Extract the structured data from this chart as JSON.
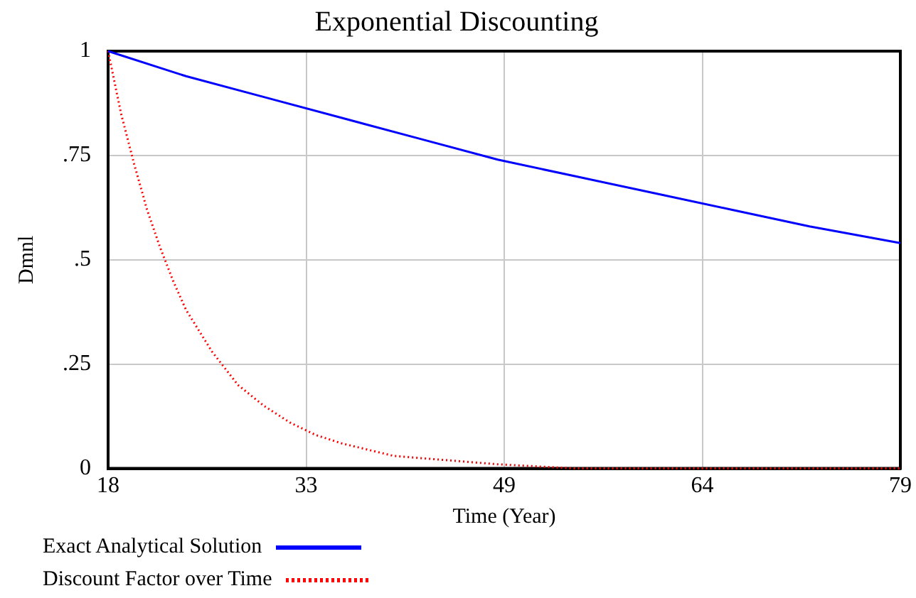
{
  "chart_data": {
    "type": "line",
    "title": "Exponential Discounting",
    "xlabel": "Time (Year)",
    "ylabel": "Dmnl",
    "xlim": [
      18,
      79
    ],
    "xticks": [
      18,
      {
        "value": 33.25,
        "label": "33"
      },
      {
        "value": 48.5,
        "label": "49"
      },
      {
        "value": 63.75,
        "label": "64"
      },
      79
    ],
    "ylim": [
      0,
      1
    ],
    "yticks": [
      0,
      {
        "value": 0.25,
        "label": ".25"
      },
      {
        "value": 0.5,
        "label": ".5"
      },
      {
        "value": 0.75,
        "label": ".75"
      },
      1
    ],
    "grid": true,
    "legend": "bottom",
    "series": [
      {
        "name": "Exact Analytical Solution",
        "color": "#0000ff",
        "line_style": "solid",
        "x": [
          18,
          24,
          30,
          36,
          42,
          48,
          54,
          60,
          66,
          72,
          79
        ],
        "values": [
          1,
          0.94,
          0.89,
          0.84,
          0.79,
          0.74,
          0.7,
          0.66,
          0.62,
          0.58,
          0.54
        ]
      },
      {
        "name": "Discount Factor over Time",
        "color": "#ff0000",
        "line_style": "dotted",
        "x": [
          18,
          19,
          20,
          21,
          22,
          23,
          24,
          26,
          28,
          30,
          32,
          34,
          36,
          40,
          44,
          48,
          54,
          60,
          79
        ],
        "values": [
          1,
          0.85,
          0.73,
          0.62,
          0.53,
          0.45,
          0.38,
          0.28,
          0.2,
          0.15,
          0.11,
          0.08,
          0.06,
          0.03,
          0.02,
          0.01,
          0,
          0,
          0
        ]
      }
    ]
  }
}
